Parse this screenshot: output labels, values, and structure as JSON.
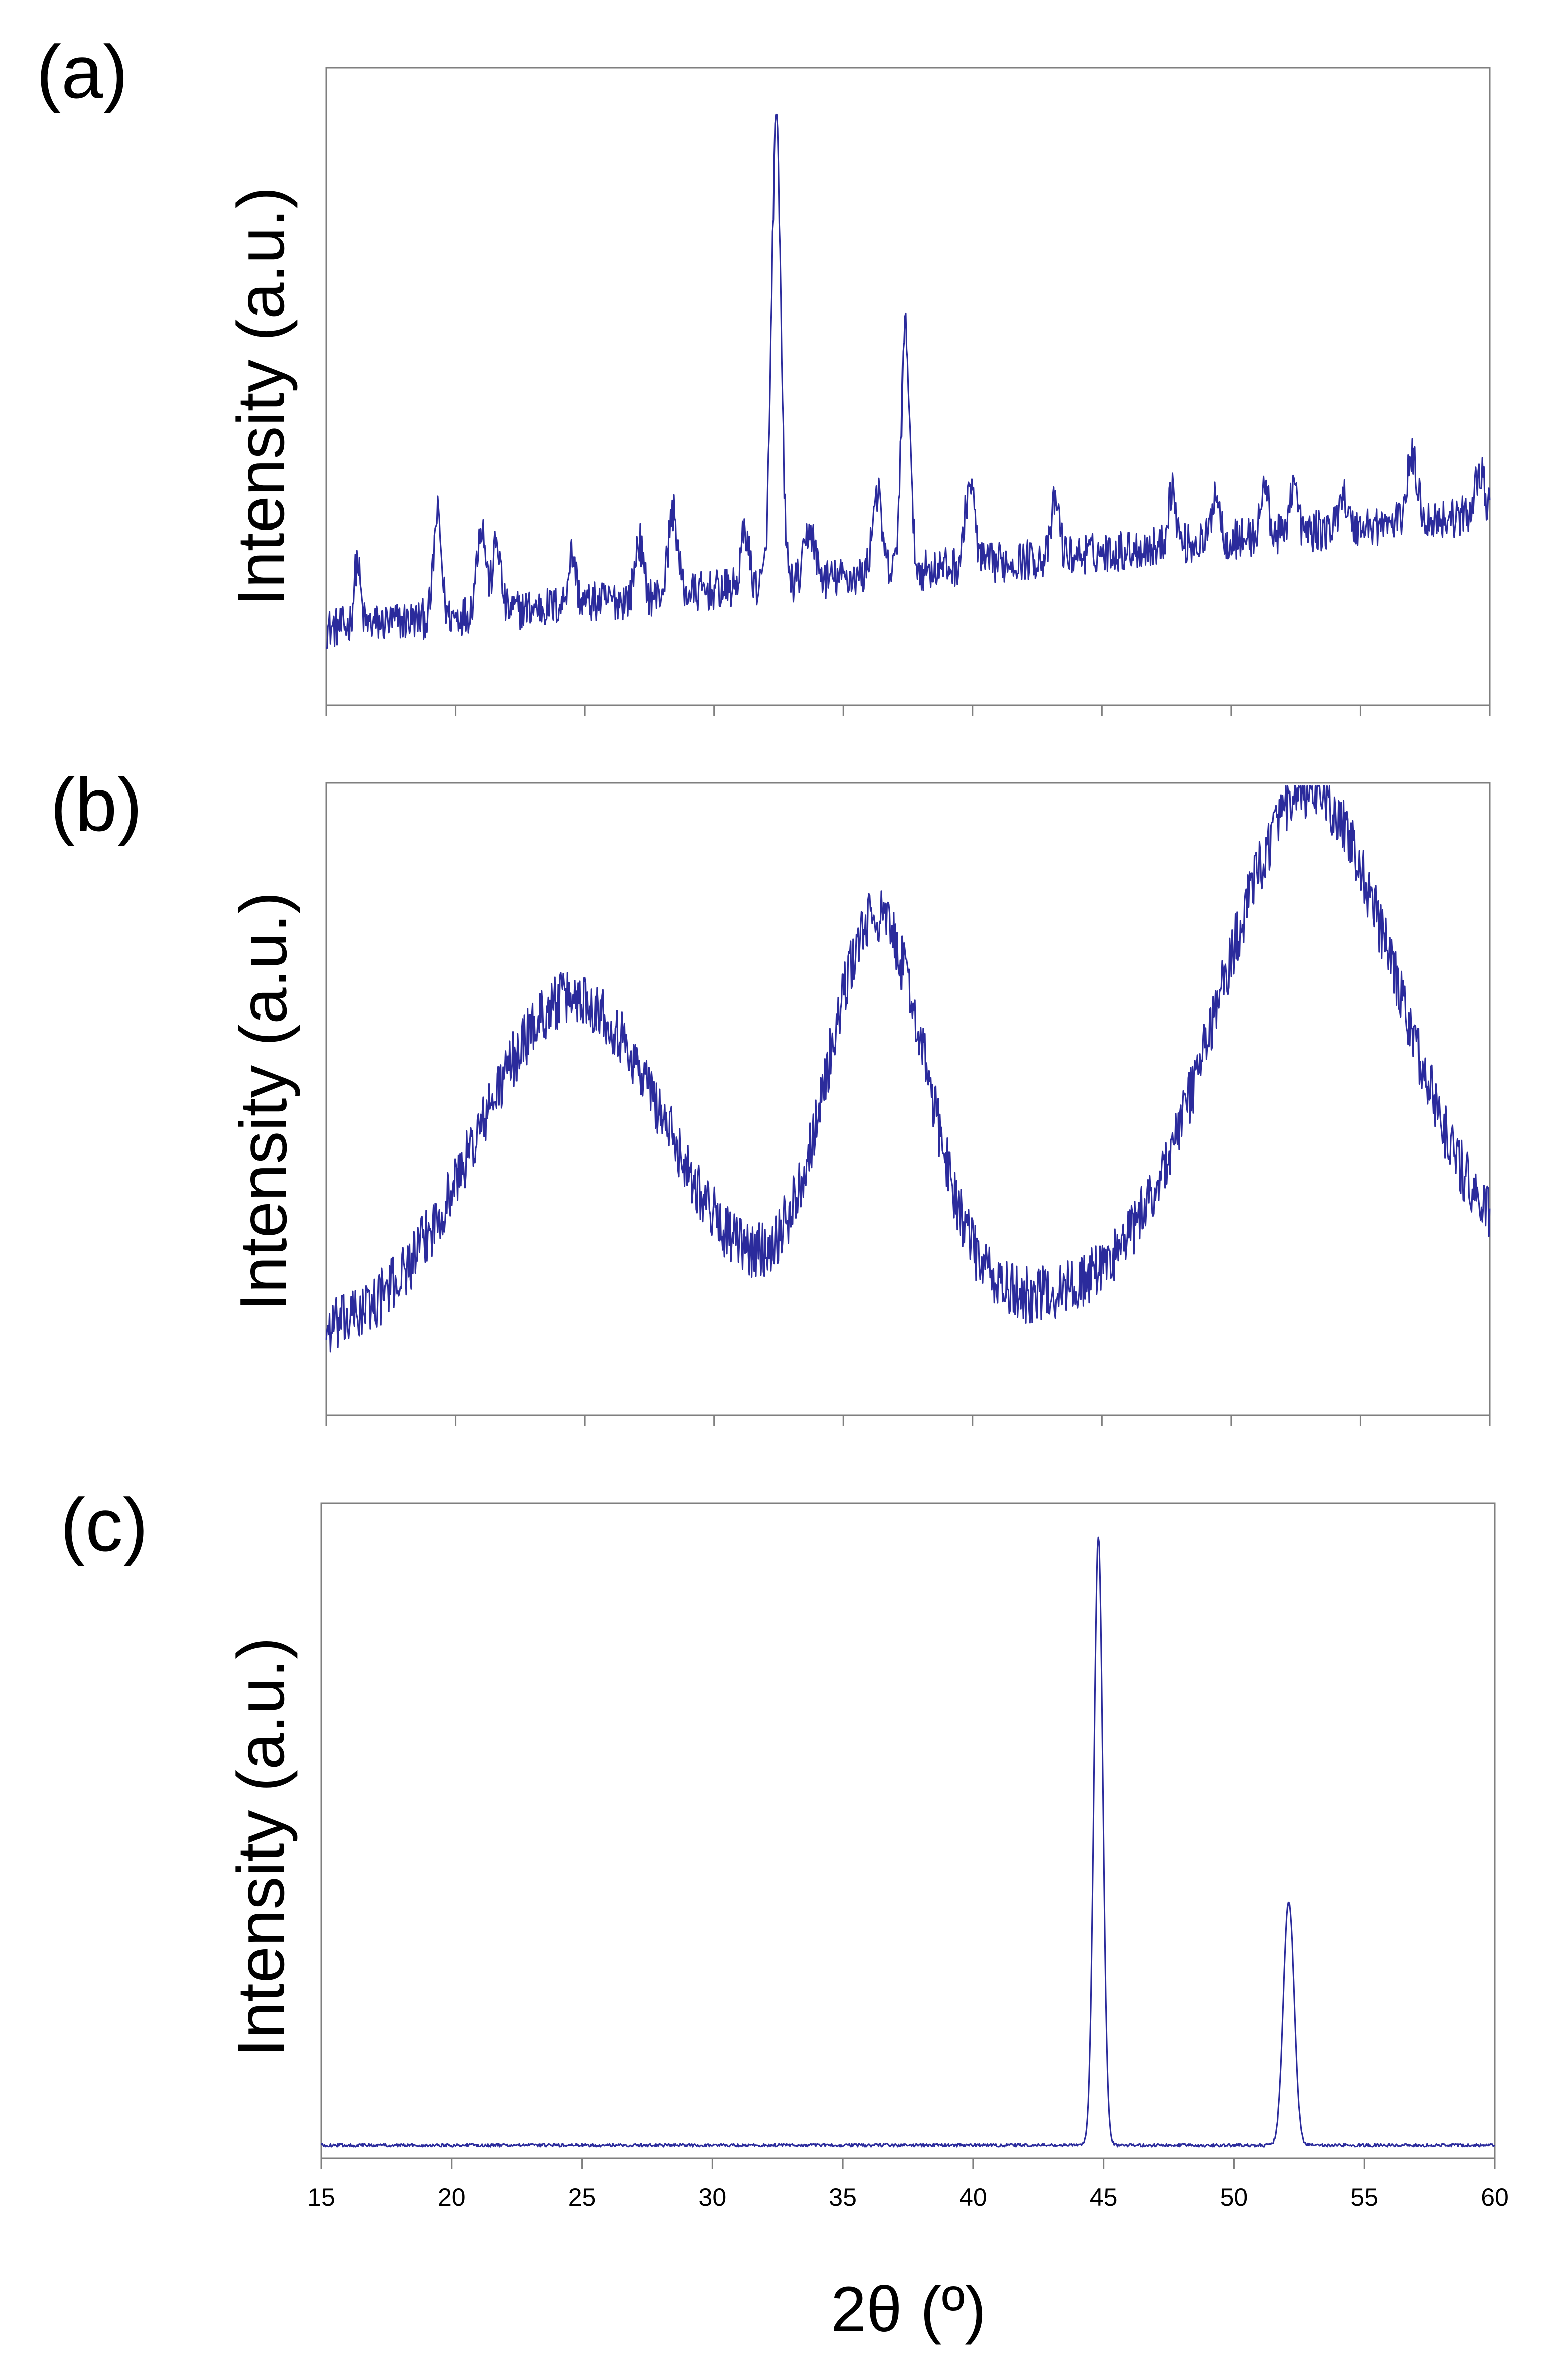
{
  "figure": {
    "x_axis_label": "2θ (º)",
    "trace_color": "#2b2b9c",
    "frame_color": "#7f7f7f"
  },
  "chart_data": [
    {
      "panel": "(a)",
      "type": "line",
      "ylabel": "Intensity (a.u.)",
      "xlabel": "",
      "xlim": [
        15,
        60
      ],
      "ylim": [
        0,
        100
      ],
      "x_ticks": [
        15,
        20,
        25,
        30,
        35,
        40,
        45,
        50,
        55,
        60
      ],
      "x_tick_labels_visible": false,
      "y_ticks_visible": false,
      "baseline": {
        "start": 12,
        "end": 30
      },
      "noise_amplitude": 3.2,
      "peaks": [
        {
          "x": 16.2,
          "height": 10,
          "width": 0.12
        },
        {
          "x": 19.3,
          "height": 16,
          "width": 0.15
        },
        {
          "x": 21.0,
          "height": 14,
          "width": 0.18
        },
        {
          "x": 21.6,
          "height": 11,
          "width": 0.15
        },
        {
          "x": 24.5,
          "height": 8,
          "width": 0.15
        },
        {
          "x": 27.1,
          "height": 9,
          "width": 0.15
        },
        {
          "x": 28.4,
          "height": 13,
          "width": 0.18
        },
        {
          "x": 31.2,
          "height": 9,
          "width": 0.15
        },
        {
          "x": 32.4,
          "height": 72,
          "width": 0.18
        },
        {
          "x": 33.7,
          "height": 8,
          "width": 0.2
        },
        {
          "x": 36.3,
          "height": 13,
          "width": 0.18
        },
        {
          "x": 37.4,
          "height": 38,
          "width": 0.16
        },
        {
          "x": 39.9,
          "height": 13,
          "width": 0.18
        },
        {
          "x": 43.2,
          "height": 9,
          "width": 0.15
        },
        {
          "x": 47.7,
          "height": 9,
          "width": 0.15
        },
        {
          "x": 49.4,
          "height": 8,
          "width": 0.15
        },
        {
          "x": 51.3,
          "height": 8,
          "width": 0.15
        },
        {
          "x": 52.4,
          "height": 8,
          "width": 0.15
        },
        {
          "x": 54.3,
          "height": 6,
          "width": 0.15
        },
        {
          "x": 57.0,
          "height": 10,
          "width": 0.2
        },
        {
          "x": 59.6,
          "height": 7,
          "width": 0.18
        }
      ]
    },
    {
      "panel": "(b)",
      "type": "line",
      "ylabel": "Intensity (a.u.)",
      "xlabel": "",
      "xlim": [
        15,
        60
      ],
      "ylim": [
        0,
        100
      ],
      "x_ticks": [
        15,
        20,
        25,
        30,
        35,
        40,
        45,
        50,
        55,
        60
      ],
      "x_tick_labels_visible": false,
      "y_ticks_visible": false,
      "baseline": {
        "start": 12,
        "end": 22
      },
      "noise_amplitude": 4.5,
      "peaks": [
        {
          "x": 24.5,
          "height": 52,
          "width": 3.6
        },
        {
          "x": 36.3,
          "height": 62,
          "width": 1.9
        },
        {
          "x": 53.0,
          "height": 78,
          "width": 3.4
        }
      ]
    },
    {
      "panel": "(c)",
      "type": "line",
      "ylabel": "Intensity (a.u.)",
      "xlabel": "2θ (º)",
      "xlim": [
        15,
        60
      ],
      "ylim": [
        0,
        100
      ],
      "x_ticks": [
        15,
        20,
        25,
        30,
        35,
        40,
        45,
        50,
        55,
        60
      ],
      "x_tick_labels": [
        "15",
        "20",
        "25",
        "30",
        "35",
        "40",
        "45",
        "50",
        "55",
        "60"
      ],
      "x_tick_labels_visible": true,
      "y_ticks_visible": false,
      "baseline": {
        "start": 2,
        "end": 2
      },
      "noise_amplitude": 0.25,
      "peaks": [
        {
          "x": 44.8,
          "height": 93,
          "width": 0.17
        },
        {
          "x": 52.1,
          "height": 37,
          "width": 0.2
        }
      ]
    }
  ]
}
